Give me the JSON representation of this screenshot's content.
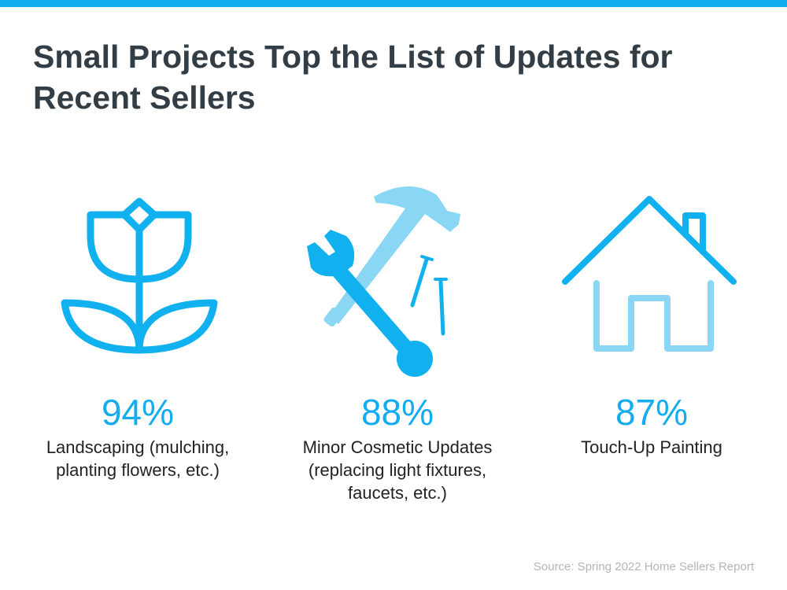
{
  "title": "Small Projects Top the List of Updates for Recent Sellers",
  "colors": {
    "accent": "#13acee",
    "icon_dark": "#11b0ee",
    "icon_light": "#8ad6f5",
    "title": "#333d45"
  },
  "items": [
    {
      "icon": "flower-icon",
      "percent": "94%",
      "label": "Landscaping (mulching, planting flowers, etc.)"
    },
    {
      "icon": "tools-icon",
      "percent": "88%",
      "label": "Minor Cosmetic Updates (replacing light fixtures, faucets, etc.)"
    },
    {
      "icon": "house-icon",
      "percent": "87%",
      "label": "Touch-Up Painting"
    }
  ],
  "source": "Source: Spring 2022 Home Sellers Report"
}
